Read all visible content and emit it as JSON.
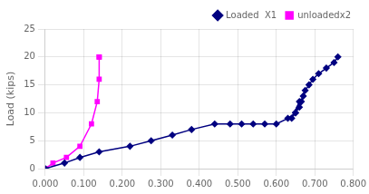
{
  "chart_data": {
    "type": "line",
    "ylabel": "Load (kips)",
    "xlim": [
      0.0,
      0.8
    ],
    "ylim": [
      0,
      25
    ],
    "xticks": [
      {
        "value": 0.0,
        "label": "0.000"
      },
      {
        "value": 0.1,
        "label": "0.100"
      },
      {
        "value": 0.2,
        "label": "0.200"
      },
      {
        "value": 0.3,
        "label": "0.300"
      },
      {
        "value": 0.4,
        "label": "0.400"
      },
      {
        "value": 0.5,
        "label": "0.500"
      },
      {
        "value": 0.6,
        "label": "0.600"
      },
      {
        "value": 0.7,
        "label": "0.700"
      },
      {
        "value": 0.8,
        "label": "0.800"
      }
    ],
    "yticks": [
      0,
      5,
      10,
      15,
      20,
      25
    ],
    "series": [
      {
        "name": "Loaded  X1",
        "color": "#000080",
        "marker": "diamond",
        "x": [
          0.0,
          0.05,
          0.09,
          0.14,
          0.22,
          0.275,
          0.33,
          0.38,
          0.44,
          0.48,
          0.51,
          0.54,
          0.57,
          0.6,
          0.63,
          0.65,
          0.66,
          0.64,
          0.65,
          0.66,
          0.665,
          0.67,
          0.675,
          0.685,
          0.695,
          0.71,
          0.73,
          0.75,
          0.76
        ],
        "values": [
          0,
          1,
          2,
          3,
          4,
          5,
          6,
          7,
          8,
          8,
          8,
          8,
          8,
          8,
          9,
          10,
          12,
          9,
          10,
          11,
          12,
          13,
          14,
          15,
          16,
          17,
          18,
          19,
          20
        ]
      },
      {
        "name": "unloadedx2",
        "color": "#FF00FF",
        "marker": "square",
        "x": [
          0.0,
          0.02,
          0.055,
          0.09,
          0.12,
          0.135,
          0.14,
          0.14,
          0.14
        ],
        "values": [
          0,
          1,
          2,
          4,
          8,
          12,
          16,
          20,
          20
        ]
      }
    ],
    "grid": true,
    "legend": "upper right"
  }
}
